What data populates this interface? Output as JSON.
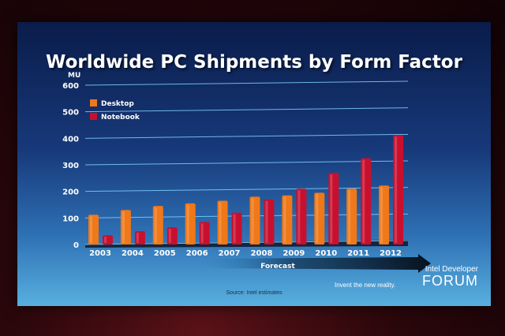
{
  "slide": {
    "source": "Source: Intel estimates",
    "tagline": "Invent the new reality.",
    "logo_top": "Intel Developer",
    "logo_main": "FORUM",
    "forecast_label": "Forecast"
  },
  "colors": {
    "desktop": "#f07818",
    "notebook": "#c8102e",
    "gridline": "#7fd0ff",
    "text": "#ffffff"
  },
  "chart_data": {
    "type": "bar",
    "title": "Worldwide PC Shipments by Form Factor",
    "ylabel": "MU",
    "xlabel": "",
    "ylim": [
      0,
      600
    ],
    "yticks": [
      0,
      100,
      200,
      300,
      400,
      500,
      600
    ],
    "grid": true,
    "legend_position": "top-left",
    "categories": [
      "2003",
      "2004",
      "2005",
      "2006",
      "2007",
      "2008",
      "2009",
      "2010",
      "2011",
      "2012"
    ],
    "series": [
      {
        "name": "Desktop",
        "values": [
          112,
          130,
          145,
          155,
          165,
          180,
          185,
          195,
          210,
          222
        ]
      },
      {
        "name": "Notebook",
        "values": [
          35,
          50,
          65,
          85,
          120,
          170,
          210,
          270,
          325,
          412
        ]
      }
    ]
  }
}
